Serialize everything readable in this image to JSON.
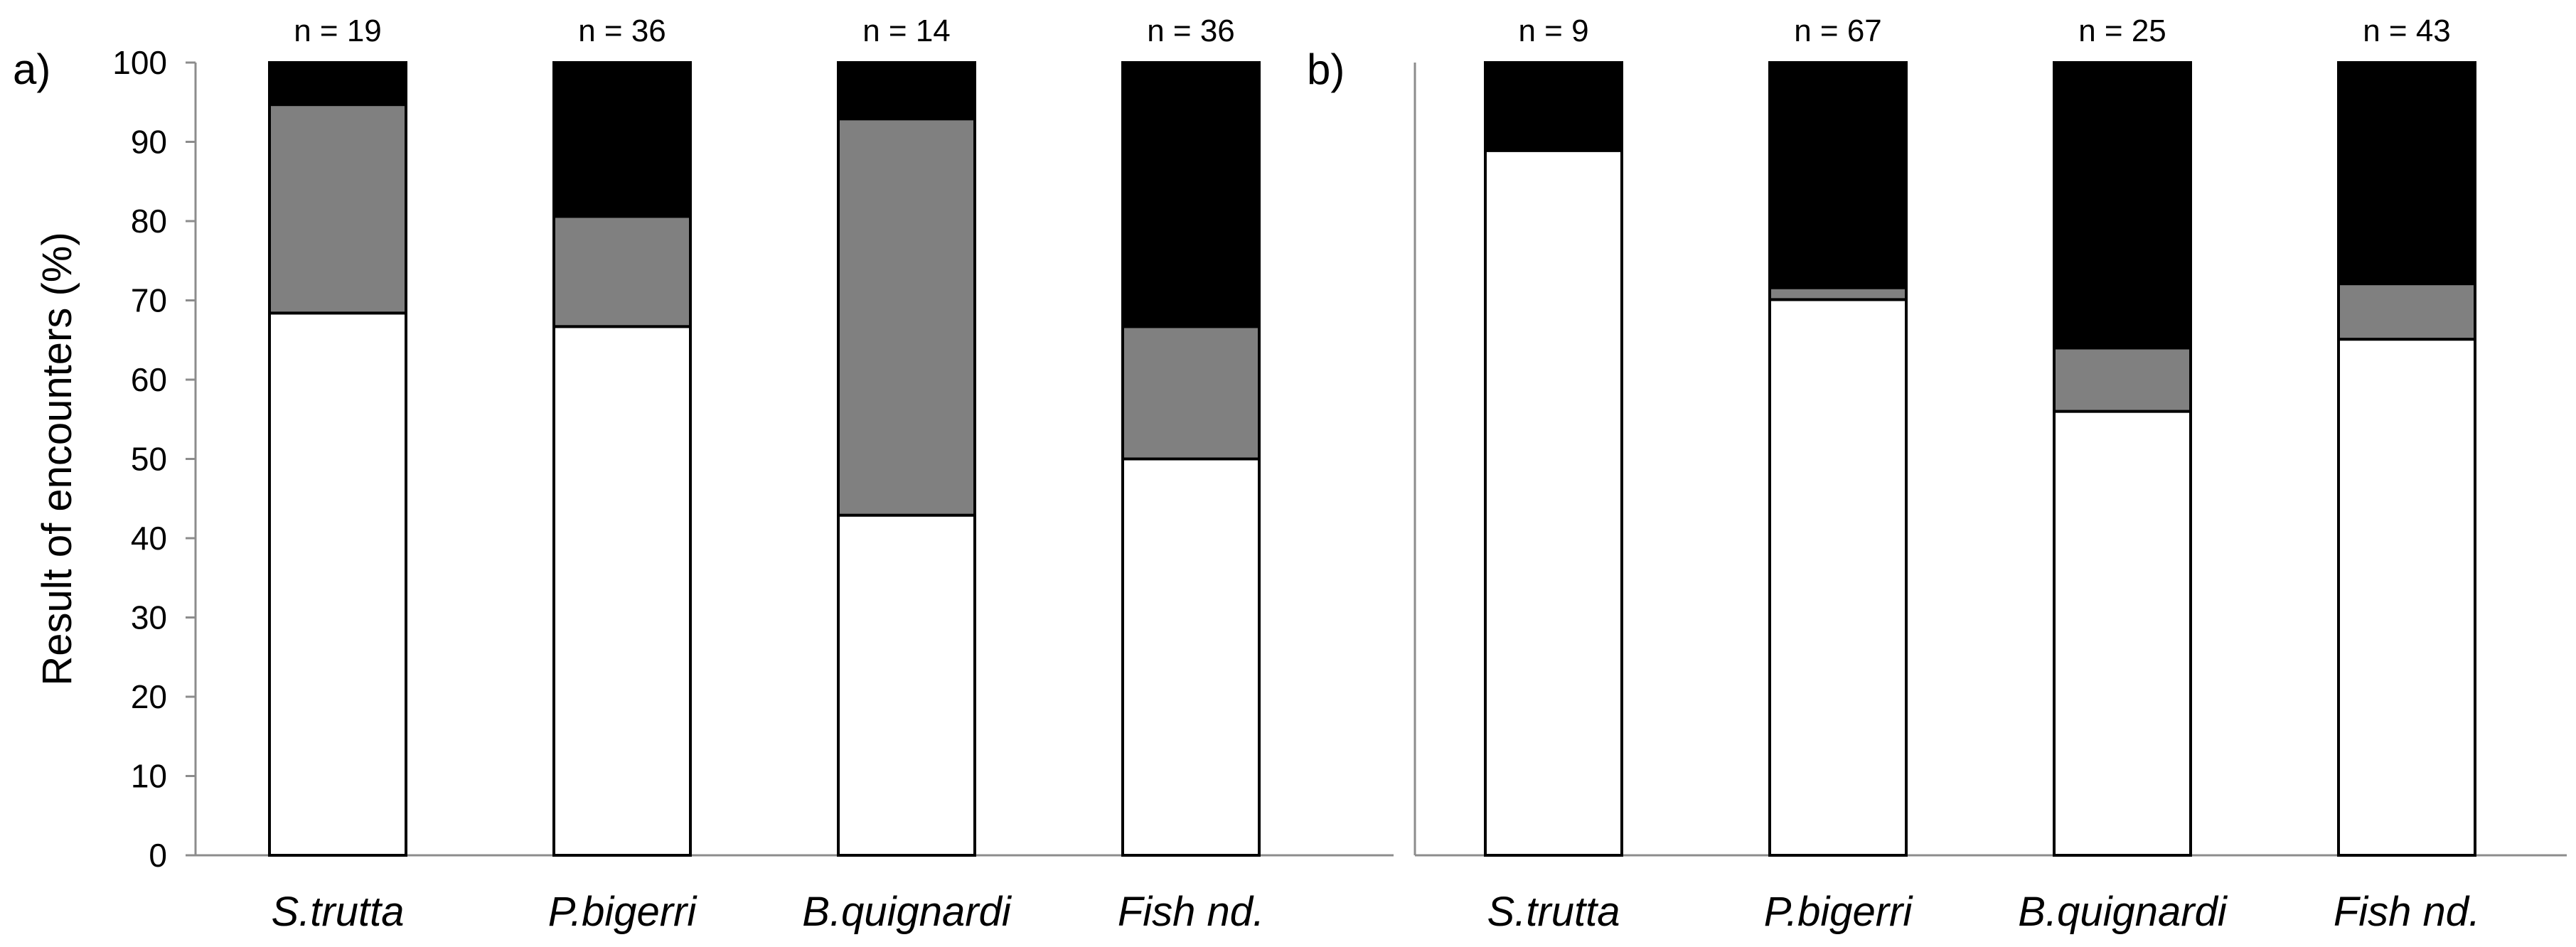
{
  "chart_data": [
    {
      "type": "bar",
      "stacked": true,
      "panel_label": "a)",
      "ylabel": "Result of encounters (%)",
      "ylim": [
        0,
        100
      ],
      "yticks": [
        0,
        10,
        20,
        30,
        40,
        50,
        60,
        70,
        80,
        90,
        100
      ],
      "categories": [
        "S.trutta",
        "P.bigerri",
        "B.quignardi",
        "Fish nd."
      ],
      "n_labels": [
        "n = 19",
        "n = 36",
        "n = 14",
        "n = 36"
      ],
      "series": [
        {
          "color": "#ffffff",
          "values": [
            68.4,
            66.7,
            42.9,
            50.0
          ]
        },
        {
          "color": "#808080",
          "values": [
            26.3,
            13.9,
            50.0,
            16.7
          ]
        },
        {
          "color": "#000000",
          "values": [
            5.3,
            19.4,
            7.1,
            33.3
          ]
        }
      ],
      "grid": false
    },
    {
      "type": "bar",
      "stacked": true,
      "panel_label": "b)",
      "ylabel": "",
      "ylim": [
        0,
        100
      ],
      "categories": [
        "S.trutta",
        "P.bigerri",
        "B.quignardi",
        "Fish nd."
      ],
      "n_labels": [
        "n = 9",
        "n = 67",
        "n = 25",
        "n = 43"
      ],
      "series": [
        {
          "color": "#ffffff",
          "values": [
            88.9,
            70.1,
            56.0,
            65.1
          ]
        },
        {
          "color": "#808080",
          "values": [
            0.0,
            1.5,
            8.0,
            7.0
          ]
        },
        {
          "color": "#000000",
          "values": [
            11.1,
            28.4,
            36.0,
            27.9
          ]
        }
      ],
      "grid": false
    }
  ]
}
